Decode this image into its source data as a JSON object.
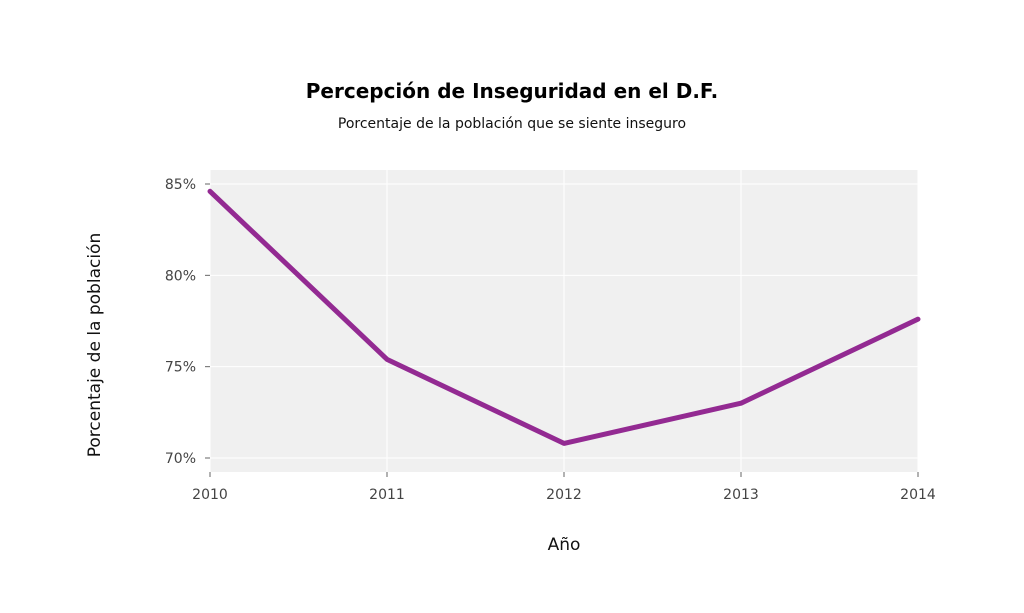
{
  "chart_data": {
    "type": "line",
    "title": "Percepción de Inseguridad en el D.F.",
    "subtitle": "Porcentaje de la población que se siente inseguro",
    "xlabel": "Año",
    "ylabel": "Porcentaje de la población",
    "x": [
      2010,
      2011,
      2012,
      2013,
      2014
    ],
    "x_tick_labels": [
      "2010",
      "2011",
      "2012",
      "2013",
      "2014"
    ],
    "y_ticks": [
      70,
      75,
      80,
      85
    ],
    "y_tick_labels": [
      "70%",
      "75%",
      "80%",
      "85%"
    ],
    "series": [
      {
        "values": [
          84.6,
          75.4,
          70.8,
          73.0,
          77.6
        ],
        "color": "#932a92"
      }
    ],
    "ylim": [
      69.3,
      85.8
    ],
    "xlim": [
      2010,
      2014
    ],
    "grid": true,
    "panel_background": "#f0f0f0"
  }
}
